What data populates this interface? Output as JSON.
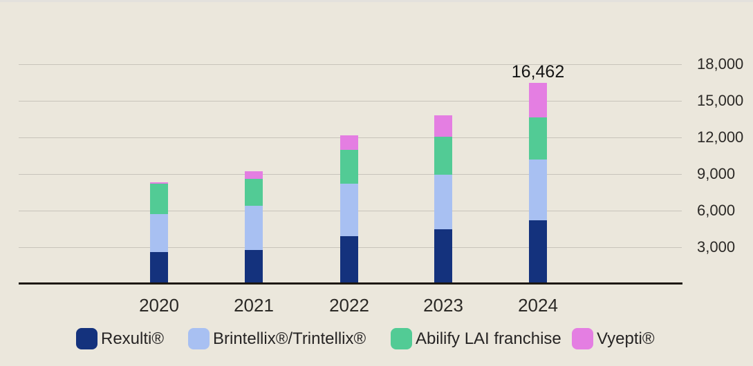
{
  "chart_data": {
    "type": "bar",
    "stacked": true,
    "title": "",
    "xlabel": "",
    "ylabel": "",
    "categories": [
      "2020",
      "2021",
      "2022",
      "2023",
      "2024"
    ],
    "series": [
      {
        "name": "Rexulti®",
        "color": "#14327d",
        "values": [
          2600,
          2800,
          3900,
          4450,
          5200
        ]
      },
      {
        "name": "Brintellix®/Trintellix®",
        "color": "#a8c0f2",
        "values": [
          3100,
          3600,
          4300,
          4500,
          4975
        ]
      },
      {
        "name": "Abilify LAI franchise",
        "color": "#52cb95",
        "values": [
          2500,
          2200,
          2800,
          3100,
          3485
        ]
      },
      {
        "name": "Vyepti®",
        "color": "#e47ee2",
        "values": [
          150,
          620,
          1200,
          1750,
          2802
        ]
      }
    ],
    "totals": [
      8350,
      9220,
      12200,
      13800,
      16462
    ],
    "data_label": {
      "category": "2024",
      "text": "16,462"
    },
    "y_axis": {
      "side": "right",
      "min": 0,
      "max": 18000,
      "tick_values": [
        18000,
        15000,
        12000,
        9000,
        6000,
        3000
      ],
      "tick_labels": [
        "18,000",
        "15,000",
        "12,000",
        "9,000",
        "6,000",
        "3,000"
      ]
    },
    "grid": true,
    "legend_position": "bottom"
  },
  "colors": {
    "background": "#ebe7dc",
    "gridline": "#c7c3ba",
    "axis": "#1d1812",
    "text": "#2b2926"
  }
}
